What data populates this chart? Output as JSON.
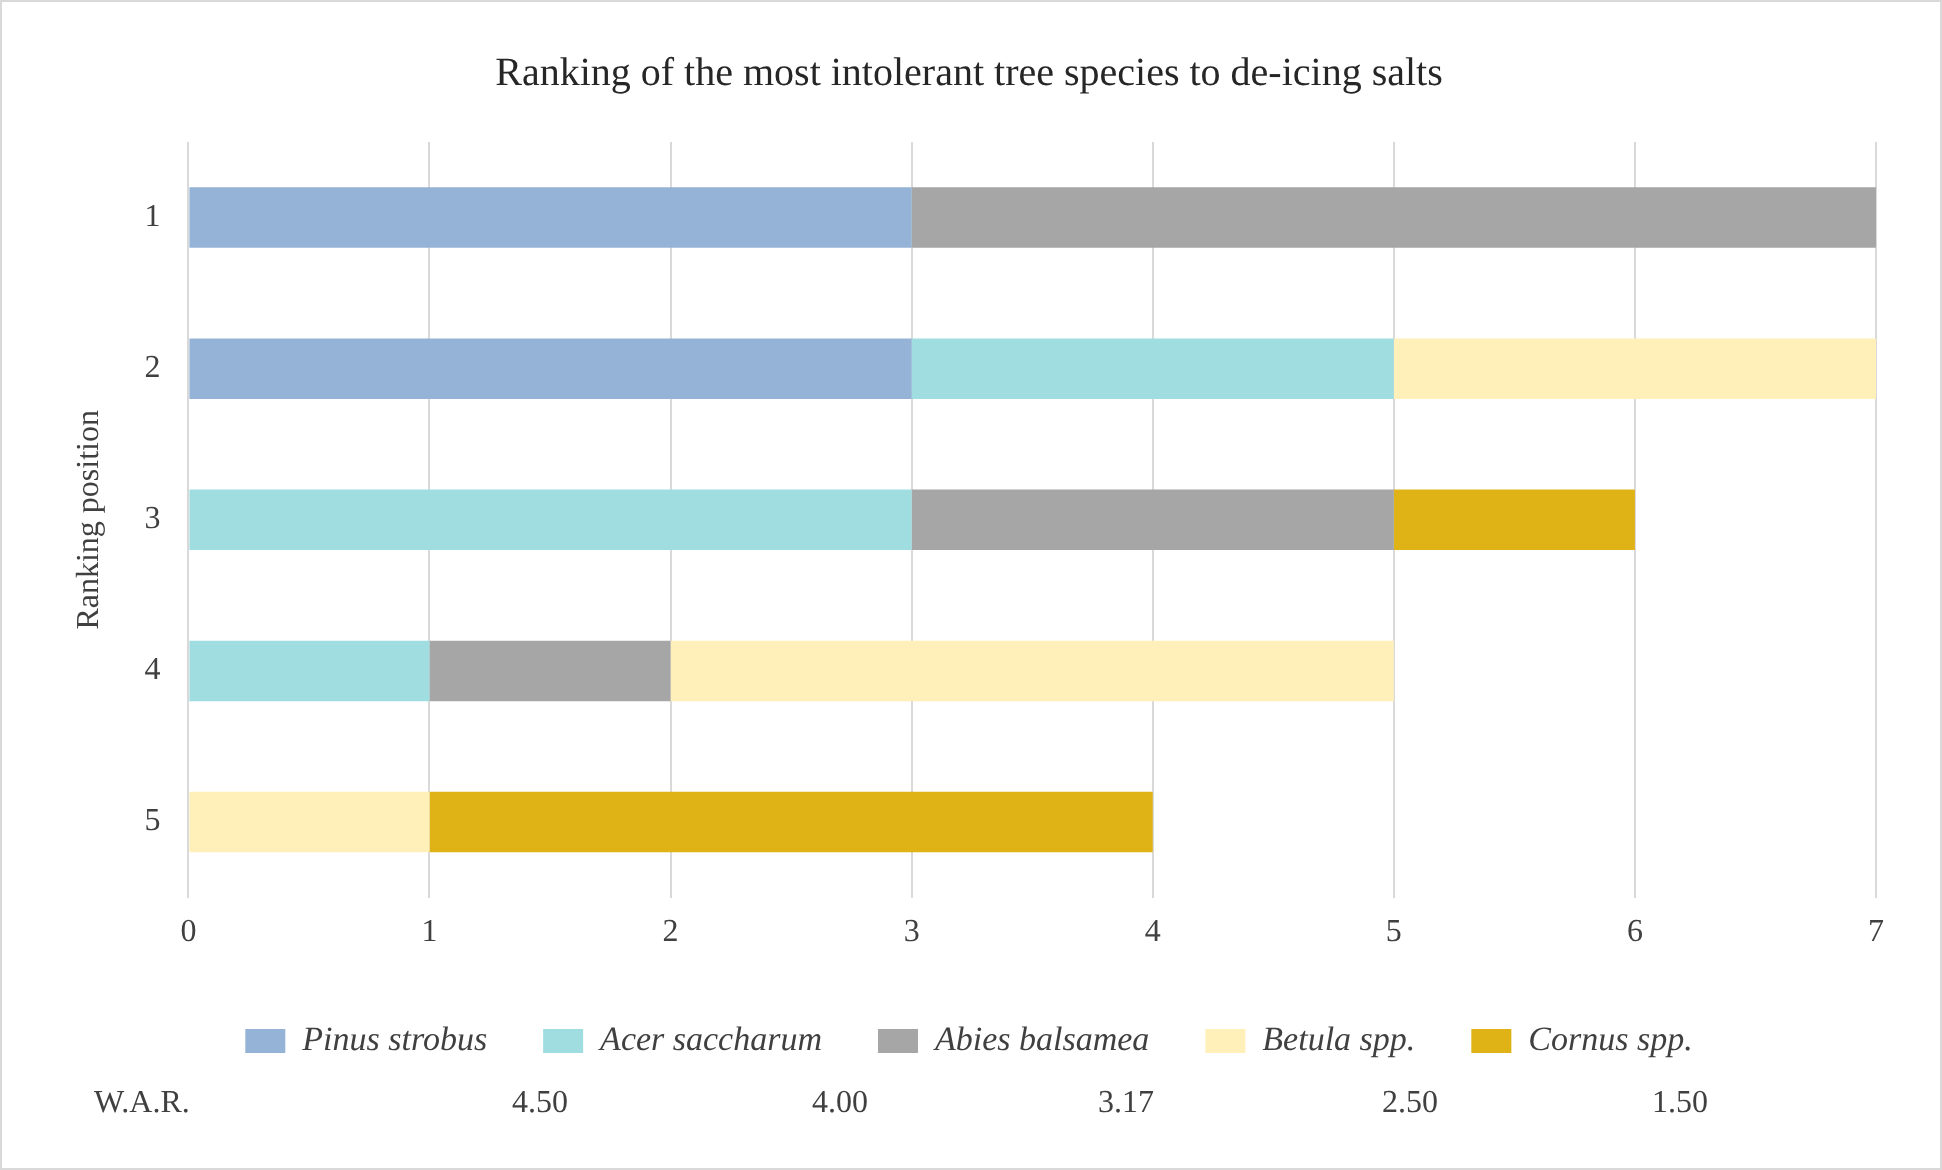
{
  "chart_data": {
    "type": "bar",
    "orientation": "horizontal",
    "stacked": true,
    "title": "Ranking of the most intolerant tree species to de-icing salts",
    "ylabel": "Ranking position",
    "categories": [
      "1",
      "2",
      "3",
      "4",
      "5"
    ],
    "series": [
      {
        "name": "Pinus strobus",
        "color": "#95b3d7",
        "values": [
          3,
          3,
          0,
          0,
          0
        ]
      },
      {
        "name": "Acer saccharum",
        "color": "#a0dde1",
        "values": [
          0,
          2,
          3,
          1,
          0
        ]
      },
      {
        "name": "Abies balsamea",
        "color": "#a6a6a6",
        "values": [
          4,
          0,
          2,
          1,
          0
        ]
      },
      {
        "name": "Betula spp.",
        "color": "#fff0b9",
        "values": [
          0,
          2,
          0,
          3,
          1
        ]
      },
      {
        "name": "Cornus spp.",
        "color": "#dfb316",
        "values": [
          0,
          0,
          1,
          0,
          3
        ]
      }
    ],
    "xlim": [
      0,
      7
    ],
    "xticks": [
      0,
      1,
      2,
      3,
      4,
      5,
      6,
      7
    ],
    "grid": "x",
    "legend": "bottom",
    "annotations": [
      "W.A.R.",
      "4.50",
      "4.00",
      "3.17",
      "2.50",
      "1.50"
    ]
  }
}
